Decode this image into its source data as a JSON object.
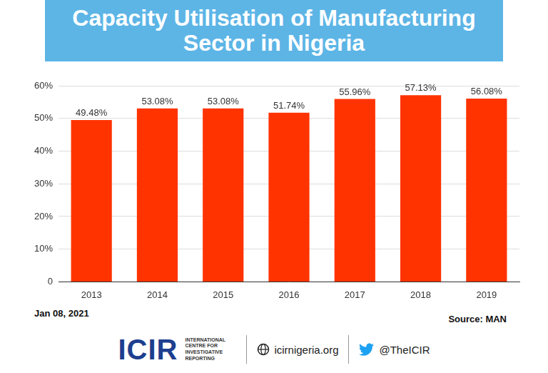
{
  "chart_data": {
    "type": "bar",
    "title": "Capacity Utilisation of Manufacturing Sector in Nigeria",
    "categories": [
      "2013",
      "2014",
      "2015",
      "2016",
      "2017",
      "2018",
      "2019"
    ],
    "values": [
      49.48,
      53.08,
      53.08,
      51.74,
      55.96,
      57.13,
      56.08
    ],
    "value_labels": [
      "49.48%",
      "53.08%",
      "53.08%",
      "51.74%",
      "55.96%",
      "57.13%",
      "56.08%"
    ],
    "color": "#ff3300",
    "ylim": [
      0,
      60
    ],
    "yticks": [
      0,
      {
        "value": 10,
        "label": "10%"
      },
      {
        "value": 20,
        "label": "20%"
      },
      {
        "value": 30,
        "label": "30%"
      },
      {
        "value": 40,
        "label": "40%"
      },
      {
        "value": 50,
        "label": "50%"
      },
      {
        "value": 60,
        "label": "60%"
      }
    ],
    "grid": true,
    "data_labels": true,
    "date": "Jan 08, 2021",
    "source": "Source: MAN"
  },
  "footer": {
    "logo": "ICIR",
    "organisation": "INTERNATIONAL CENTRE FOR INVESTIGATIVE REPORTING",
    "website": "icirnigeria.org",
    "twitter": "@TheICIR"
  }
}
